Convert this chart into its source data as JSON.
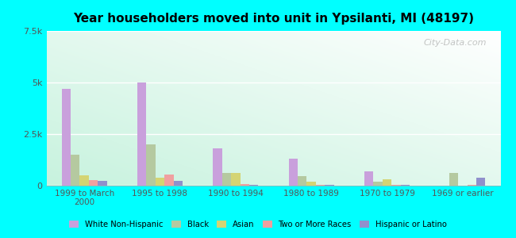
{
  "title": "Year householders moved into unit in Ypsilanti, MI (48197)",
  "categories": [
    "1999 to March\n2000",
    "1995 to 1998",
    "1990 to 1994",
    "1980 to 1989",
    "1970 to 1979",
    "1969 or earlier"
  ],
  "series": {
    "White Non-Hispanic": [
      4700,
      5000,
      1800,
      1300,
      700,
      0
    ],
    "Black": [
      1500,
      2000,
      600,
      450,
      200,
      600
    ],
    "Asian": [
      500,
      400,
      600,
      180,
      300,
      0
    ],
    "Two or More Races": [
      280,
      550,
      80,
      50,
      50,
      50
    ],
    "Hispanic or Latino": [
      230,
      230,
      50,
      50,
      50,
      400
    ]
  },
  "colors": {
    "White Non-Hispanic": "#c9a0dc",
    "Black": "#b5c9a0",
    "Asian": "#d4d474",
    "Two or More Races": "#f0a0a0",
    "Hispanic or Latino": "#9090cc"
  },
  "ylim": [
    0,
    7500
  ],
  "yticks": [
    0,
    2500,
    5000,
    7500
  ],
  "ytick_labels": [
    "0",
    "2.5k",
    "5k",
    "7.5k"
  ],
  "background_color": "#00ffff",
  "watermark": "City-Data.com"
}
